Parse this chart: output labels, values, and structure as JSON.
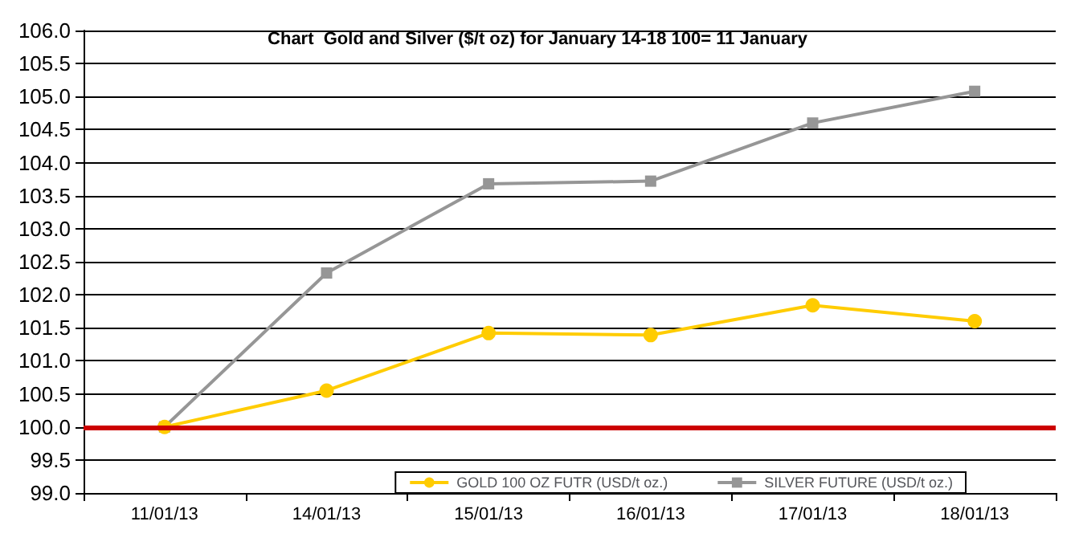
{
  "chart_data": {
    "type": "line",
    "title": "Chart  Gold and Silver ($/t oz) for January 14-18 100= 11 January",
    "categories": [
      "11/01/13",
      "14/01/13",
      "15/01/13",
      "16/01/13",
      "17/01/13",
      "18/01/13"
    ],
    "series": [
      {
        "name": "GOLD 100 OZ FUTR (USD/t oz.)",
        "color": "#ffcc00",
        "marker": "circle",
        "values": [
          100.0,
          100.55,
          101.42,
          101.39,
          101.84,
          101.6
        ]
      },
      {
        "name": "SILVER FUTURE (USD/t oz.)",
        "color": "#969696",
        "marker": "square",
        "values": [
          100.0,
          102.33,
          103.68,
          103.72,
          104.6,
          105.08
        ]
      }
    ],
    "ylim": [
      99,
      106
    ],
    "yticks": [
      {
        "value": 99,
        "label": "99.0"
      },
      {
        "value": 99.5,
        "label": "99.5"
      },
      {
        "value": 100,
        "label": "100.0"
      },
      {
        "value": 100.5,
        "label": "100.5"
      },
      {
        "value": 101,
        "label": "101.0"
      },
      {
        "value": 101.5,
        "label": "101.5"
      },
      {
        "value": 102,
        "label": "102.0"
      },
      {
        "value": 102.5,
        "label": "102.5"
      },
      {
        "value": 103,
        "label": "103.0"
      },
      {
        "value": 103.5,
        "label": "103.5"
      },
      {
        "value": 104,
        "label": "104.0"
      },
      {
        "value": 104.5,
        "label": "104.5"
      },
      {
        "value": 105,
        "label": "105.0"
      },
      {
        "value": 105.5,
        "label": "105.5"
      },
      {
        "value": 106,
        "label": "106.0"
      }
    ],
    "ref_lines": [
      {
        "axis": "y",
        "value": 100,
        "label": null,
        "color": "#cc0000"
      }
    ],
    "grid": "y",
    "legend": "bottom right",
    "line_style": "solid"
  }
}
